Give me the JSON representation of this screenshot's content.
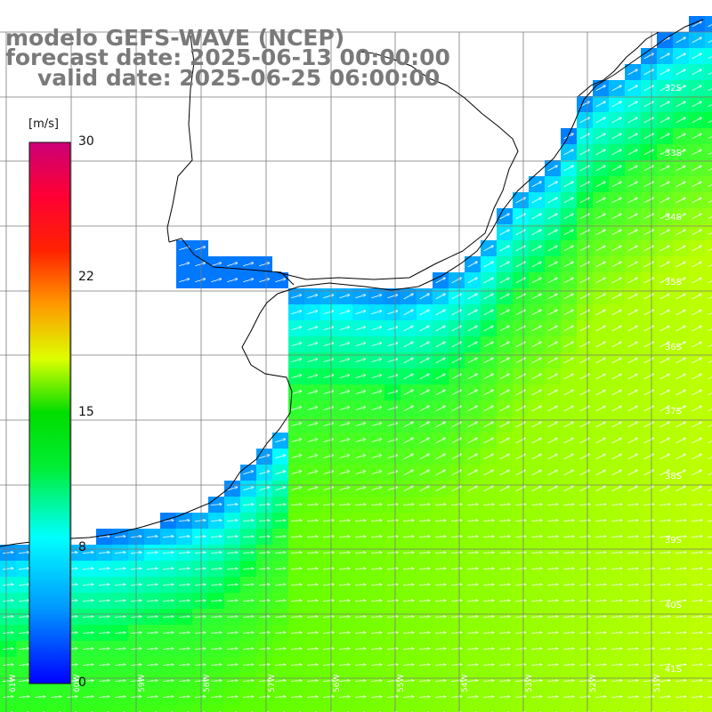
{
  "header": {
    "line1": "modelo GEFS-WAVE (NCEP)",
    "line2": "forecast date: 2025-06-13 00:00:00",
    "line3": "valid date: 2025-06-25 06:00:00"
  },
  "colorbar": {
    "unit": "[m/s]",
    "ticks": [
      "30",
      "22",
      "15",
      "8",
      "0"
    ],
    "colors": [
      "#0000ff",
      "#00aaff",
      "#00ffff",
      "#00ff00",
      "#ffff00",
      "#ff8800",
      "#ff0000",
      "#cc0077"
    ]
  },
  "map": {
    "lat_labels": [
      "32S",
      "33S",
      "34S",
      "35S",
      "36S",
      "37S",
      "38S",
      "39S",
      "40S",
      "41S"
    ],
    "lon_labels": [
      "61W",
      "60W",
      "59W",
      "58W",
      "57W",
      "56W",
      "55W",
      "54W",
      "53W",
      "52W",
      "51W"
    ],
    "land_color": "#ffffff",
    "grid_color": "#7a7a7a",
    "coast_color": "#000000",
    "arrow_color": "#ffffff"
  }
}
